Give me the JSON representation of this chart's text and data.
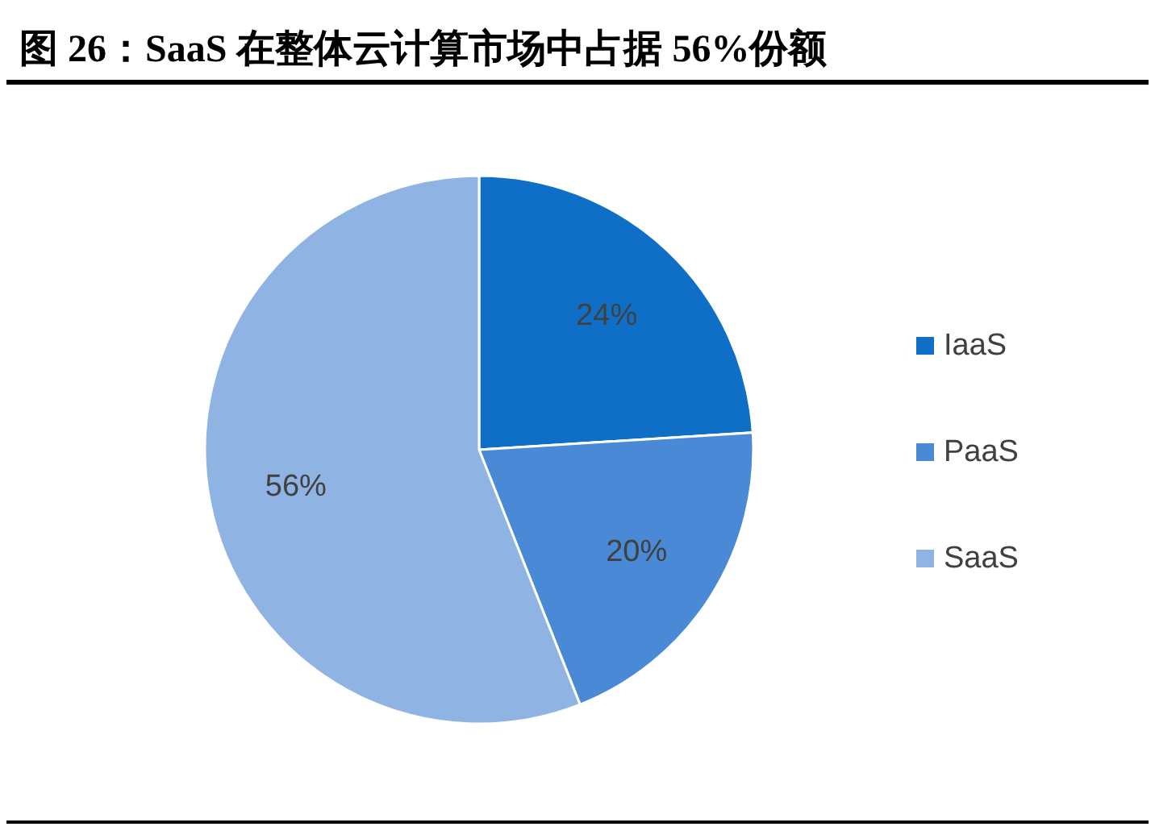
{
  "chart_data": {
    "type": "pie",
    "title": "图 26：SaaS 在整体云计算市场中占据 56%份额",
    "categories": [
      "IaaS",
      "PaaS",
      "SaaS"
    ],
    "values": [
      24,
      20,
      56
    ],
    "colors": [
      "#0f6fc6",
      "#4a89d6",
      "#8fb4e3"
    ],
    "value_labels": [
      "24%",
      "20%",
      "56%"
    ],
    "legend": "right"
  }
}
